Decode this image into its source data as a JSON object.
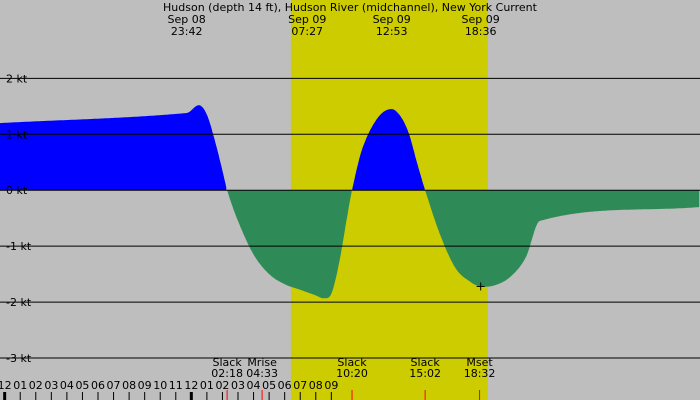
{
  "chart_data": {
    "type": "area",
    "title": "Hudson (depth 14 ft), Hudson River (midchannel), New York Current",
    "ylabel": "kt",
    "ylim": [
      -3.75,
      3.4
    ],
    "xlim_hours": [
      -12.3,
      32.7
    ],
    "y_ticks": [
      {
        "value": 2,
        "label": "2 kt"
      },
      {
        "value": 1,
        "label": "1 kt"
      },
      {
        "value": 0,
        "label": "0 kt"
      },
      {
        "value": -1,
        "label": "-1 kt"
      },
      {
        "value": -2,
        "label": "-2 kt"
      },
      {
        "value": -3,
        "label": "-3 kt"
      }
    ],
    "hour_ticks": [
      {
        "hour": -13,
        "label": "11"
      },
      {
        "hour": -12,
        "label": "12",
        "major": true
      },
      {
        "hour": -11,
        "label": "01"
      },
      {
        "hour": -10,
        "label": "02"
      },
      {
        "hour": -9,
        "label": "03"
      },
      {
        "hour": -8,
        "label": "04"
      },
      {
        "hour": -7,
        "label": "05"
      },
      {
        "hour": -6,
        "label": "06"
      },
      {
        "hour": -5,
        "label": "07"
      },
      {
        "hour": -4,
        "label": "08"
      },
      {
        "hour": -3,
        "label": "09"
      },
      {
        "hour": -2,
        "label": "10"
      },
      {
        "hour": -1,
        "label": "11"
      },
      {
        "hour": 0,
        "label": "12",
        "major": true
      },
      {
        "hour": 1,
        "label": "01"
      },
      {
        "hour": 2,
        "label": "02"
      },
      {
        "hour": 3,
        "label": "03"
      },
      {
        "hour": 4,
        "label": "04"
      },
      {
        "hour": 5,
        "label": "05"
      },
      {
        "hour": 6,
        "label": "06"
      },
      {
        "hour": 7,
        "label": "07"
      },
      {
        "hour": 8,
        "label": "08"
      },
      {
        "hour": 9,
        "label": "09"
      }
    ],
    "daylight": {
      "start_hour": 6.4,
      "end_hour": 19.05,
      "label": "daytime"
    },
    "top_labels": [
      {
        "date": "Sep 08",
        "time": "23:42",
        "hour": -0.3
      },
      {
        "date": "Sep 09",
        "time": "07:27",
        "hour": 7.45
      },
      {
        "date": "Sep 09",
        "time": "12:53",
        "hour": 12.88
      },
      {
        "date": "Sep 09",
        "time": "18:36",
        "hour": 18.6
      }
    ],
    "events": [
      {
        "name": "Slack",
        "time": "02:18",
        "hour": 2.3
      },
      {
        "name": "Mrise",
        "time": "04:33",
        "hour": 4.55
      },
      {
        "name": "Slack",
        "time": "10:20",
        "hour": 10.33
      },
      {
        "name": "Slack",
        "time": "15:02",
        "hour": 15.03
      },
      {
        "name": "Mset",
        "time": "18:32",
        "hour": 18.53
      }
    ],
    "series": [
      {
        "points": [
          [
            -0.3,
            1.38
          ],
          [
            0.5,
            1.52
          ],
          [
            1.0,
            1.35
          ],
          [
            1.5,
            0.9
          ],
          [
            2.0,
            0.35
          ],
          [
            2.3,
            0.0
          ],
          [
            3.0,
            -0.55
          ],
          [
            4.0,
            -1.15
          ],
          [
            5.0,
            -1.5
          ],
          [
            6.0,
            -1.68
          ],
          [
            7.0,
            -1.78
          ],
          [
            8.0,
            -1.88
          ],
          [
            8.5,
            -1.93
          ],
          [
            9.0,
            -1.85
          ],
          [
            9.5,
            -1.3
          ],
          [
            10.0,
            -0.5
          ],
          [
            10.33,
            0.0
          ],
          [
            11.0,
            0.75
          ],
          [
            12.0,
            1.3
          ],
          [
            12.88,
            1.45
          ],
          [
            13.5,
            1.3
          ],
          [
            14.0,
            1.0
          ],
          [
            14.5,
            0.5
          ],
          [
            15.03,
            0.0
          ],
          [
            16.0,
            -0.8
          ],
          [
            17.0,
            -1.4
          ],
          [
            18.0,
            -1.65
          ],
          [
            18.6,
            -1.72
          ],
          [
            19.5,
            -1.7
          ],
          [
            20.5,
            -1.55
          ],
          [
            21.5,
            -1.2
          ],
          [
            22.4,
            -0.55
          ]
        ]
      }
    ],
    "marker": {
      "hour": 18.6,
      "value": -1.72,
      "symbol": "+"
    },
    "colors": {
      "background": "#bebebe",
      "daylight": "#cccc00",
      "flood": "#0000ff",
      "ebb": "#2e8b57",
      "gridline": "#000000",
      "event_tick": "#ff0000",
      "hour_tick": "#000000"
    }
  }
}
